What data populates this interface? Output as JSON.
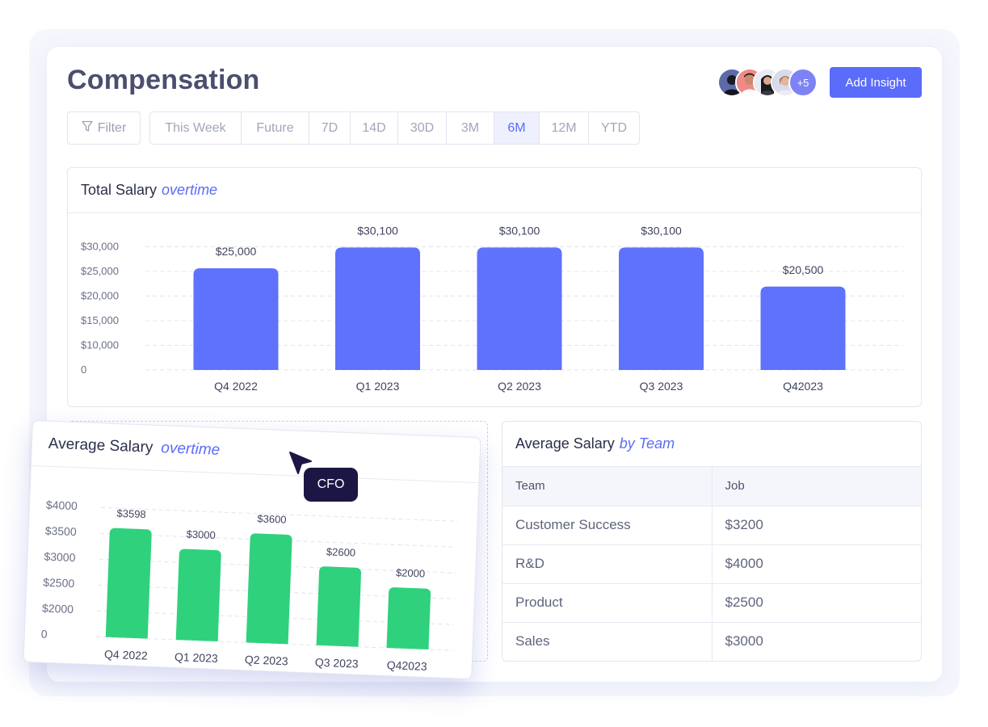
{
  "header": {
    "title": "Compensation",
    "extra_members": "+5",
    "add_insight_label": "Add Insight"
  },
  "filters": {
    "filter_label": "Filter",
    "periods": [
      "This Week",
      "Future",
      "7D",
      "14D",
      "30D",
      "3M",
      "6M",
      "12M",
      "YTD"
    ],
    "active_period": "6M"
  },
  "total_salary": {
    "title": "Total Salary",
    "title_accent": "overtime"
  },
  "average_salary": {
    "title": "Average Salary",
    "title_accent": "overtime",
    "cursor_tag": "CFO"
  },
  "by_team": {
    "title": "Average Salary",
    "title_accent": "by Team",
    "columns": [
      "Team",
      "Job"
    ],
    "rows": [
      [
        "Customer Success",
        "$3200"
      ],
      [
        "R&D",
        "$4000"
      ],
      [
        "Product",
        "$2500"
      ],
      [
        "Sales",
        "$3000"
      ]
    ]
  },
  "colors": {
    "accent": "#5a6cf9",
    "bar_blue": "#5f72fb",
    "bar_green": "#2fd17d",
    "tag_bg": "#1c1645"
  },
  "chart_data": [
    {
      "type": "bar",
      "title": "Total Salary overtime",
      "categories": [
        "Q4 2022",
        "Q1 2023",
        "Q2 2023",
        "Q3 2023",
        "Q42023"
      ],
      "values": [
        25000,
        30100,
        30100,
        30100,
        20500
      ],
      "data_labels": [
        "$25,000",
        "$30,100",
        "$30,100",
        "$30,100",
        "$20,500"
      ],
      "ytick_labels": [
        "0",
        "$10,000",
        "$15,000",
        "$20,000",
        "$25,000",
        "$30,000"
      ],
      "grid": true
    },
    {
      "type": "bar",
      "title": "Average Salary overtime",
      "categories": [
        "Q4 2022",
        "Q1 2023",
        "Q2 2023",
        "Q3 2023",
        "Q42023"
      ],
      "values": [
        3598,
        3000,
        3600,
        2600,
        2000
      ],
      "data_labels": [
        "$3598",
        "$3000",
        "$3600",
        "$2600",
        "$2000"
      ],
      "ytick_labels": [
        "0",
        "$2000",
        "$2500",
        "$3000",
        "$3500",
        "$4000"
      ],
      "grid": true
    }
  ]
}
